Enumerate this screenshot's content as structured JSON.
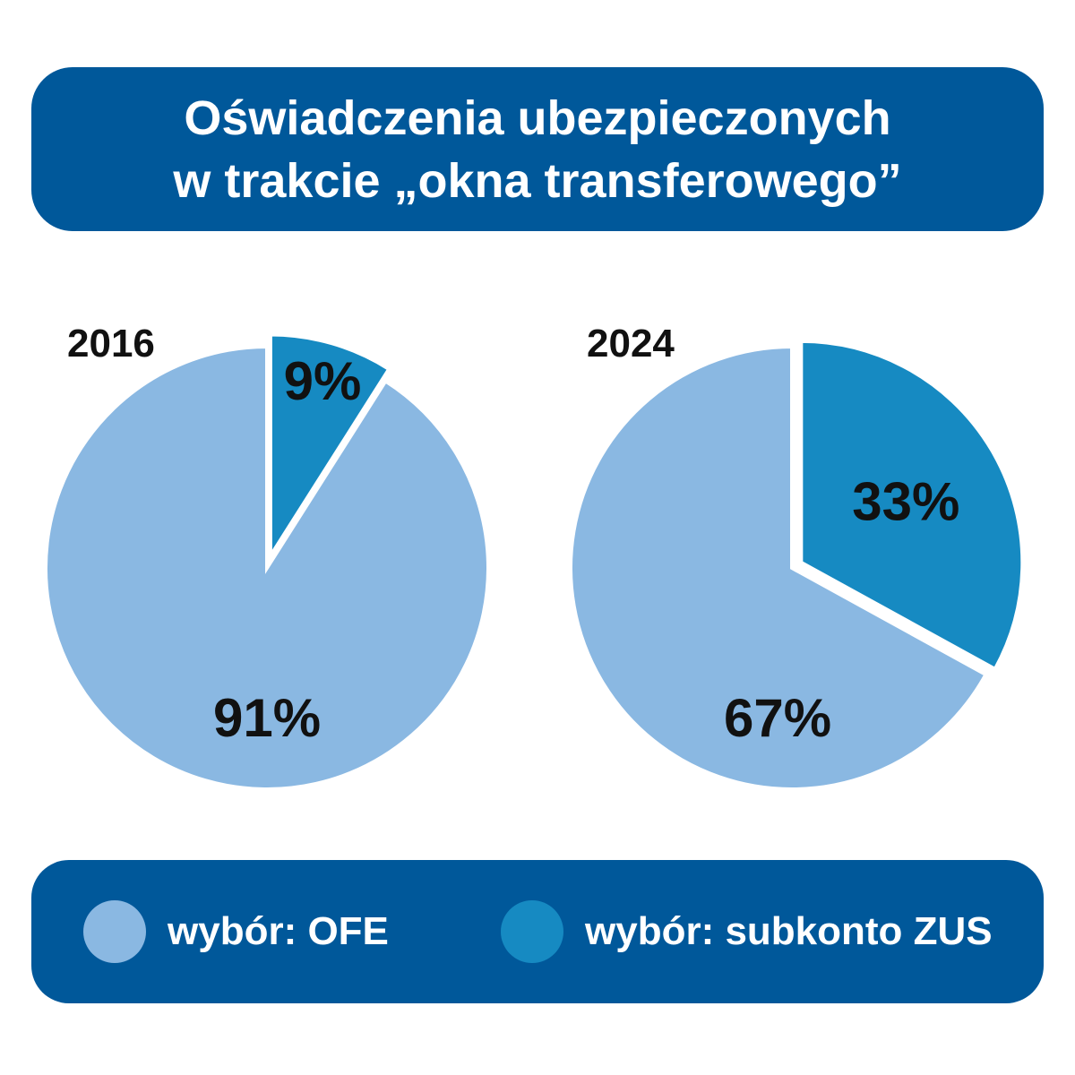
{
  "title": {
    "line1": "Oświadczenia ubezpieczonych",
    "line2": "w trakcie „okna transferowego”"
  },
  "colors": {
    "background": "#ffffff",
    "banner": "#00589a",
    "ofe": "#8ab8e2",
    "zus": "#168ac2",
    "label_text": "#111111"
  },
  "legend": {
    "items": [
      {
        "label": "wybór: OFE",
        "color": "#8ab8e2"
      },
      {
        "label": "wybór: subkonto ZUS",
        "color": "#168ac2"
      }
    ]
  },
  "chart_data": [
    {
      "type": "pie",
      "title": "2016",
      "slices": [
        {
          "name": "wybór: OFE",
          "value": 91,
          "label": "91%",
          "color": "#8ab8e2"
        },
        {
          "name": "wybór: subkonto ZUS",
          "value": 9,
          "label": "9%",
          "color": "#168ac2",
          "exploded": true
        }
      ]
    },
    {
      "type": "pie",
      "title": "2024",
      "slices": [
        {
          "name": "wybór: OFE",
          "value": 67,
          "label": "67%",
          "color": "#8ab8e2"
        },
        {
          "name": "wybór: subkonto ZUS",
          "value": 33,
          "label": "33%",
          "color": "#168ac2",
          "exploded": true
        }
      ]
    }
  ]
}
